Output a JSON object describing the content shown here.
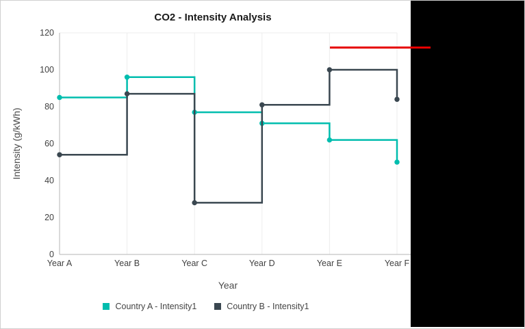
{
  "window": {
    "background": "#ffffff",
    "border_color": "#cfcfcf",
    "black_panel_color": "#000000"
  },
  "chart_data": {
    "type": "line",
    "subtype": "step",
    "title": "CO2 - Intensity Analysis",
    "xlabel": "Year",
    "ylabel": "Intensity (g/kWh)",
    "categories": [
      "Year A",
      "Year B",
      "Year C",
      "Year D",
      "Year E",
      "Year F"
    ],
    "series": [
      {
        "name": "Country A - Intensity1",
        "color": "#00bdae",
        "values": [
          85,
          96,
          77,
          71,
          62,
          50
        ]
      },
      {
        "name": "Country B - Intensity1",
        "color": "#3a4750",
        "values": [
          54,
          87,
          28,
          81,
          100,
          84
        ]
      }
    ],
    "ylim": [
      0,
      120
    ],
    "yticks": [
      0,
      20,
      40,
      60,
      80,
      100,
      120
    ],
    "grid": "vertical-only",
    "legend_position": "bottom",
    "annotation": {
      "type": "horizontal-line",
      "color": "#e60000",
      "y_value": 112,
      "starts_at_category": "Year E",
      "extends_past_plot": true
    },
    "colors": {
      "gridline": "#ececec",
      "axis_line": "#b6b6b6",
      "tick_text": "#404040",
      "marker_radius": 3.75,
      "line_width": 2.5
    }
  }
}
